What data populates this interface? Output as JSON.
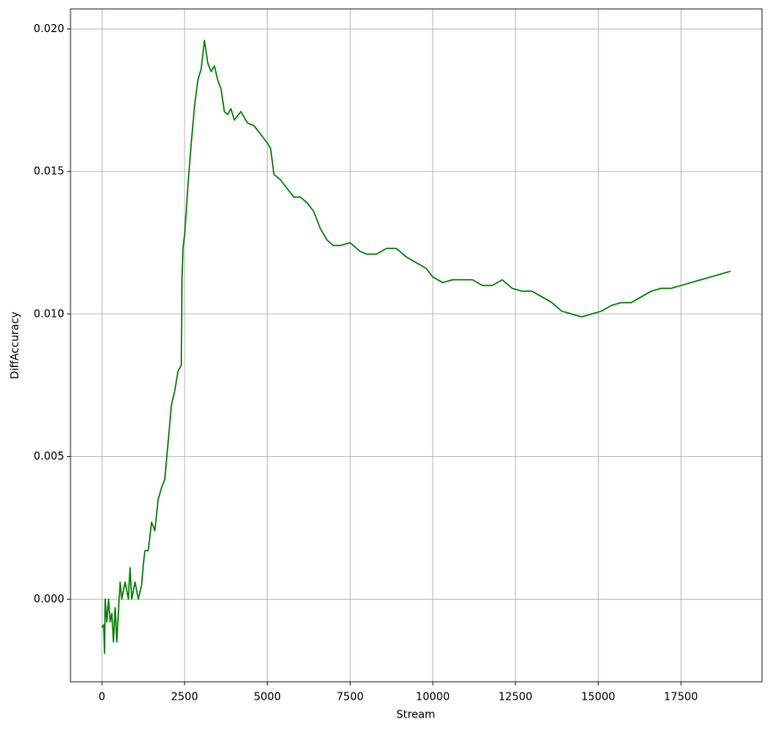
{
  "chart_data": {
    "type": "line",
    "xlabel": "Stream",
    "ylabel": "DiffAccuracy",
    "color": "#008000",
    "grid": true,
    "xlim": [
      -950,
      19950
    ],
    "ylim": [
      -0.0029,
      0.0207
    ],
    "xticks": [
      0,
      2500,
      5000,
      7500,
      10000,
      12500,
      15000,
      17500
    ],
    "yticks": [
      {
        "value": 0,
        "label": "0.000"
      },
      {
        "value": 0.005,
        "label": "0.005"
      },
      {
        "value": 0.01,
        "label": "0.010"
      },
      {
        "value": 0.015,
        "label": "0.015"
      },
      {
        "value": 0.02,
        "label": "0.020"
      }
    ],
    "x": [
      0,
      50,
      80,
      100,
      150,
      200,
      250,
      300,
      350,
      400,
      450,
      500,
      550,
      600,
      700,
      800,
      850,
      900,
      1000,
      1100,
      1200,
      1250,
      1300,
      1400,
      1500,
      1600,
      1700,
      1800,
      1900,
      2000,
      2100,
      2200,
      2300,
      2400,
      2420,
      2450,
      2500,
      2550,
      2600,
      2700,
      2800,
      2900,
      3000,
      3100,
      3200,
      3300,
      3400,
      3500,
      3600,
      3700,
      3800,
      3900,
      4000,
      4200,
      4400,
      4600,
      4800,
      5000,
      5100,
      5200,
      5400,
      5600,
      5800,
      6000,
      6200,
      6400,
      6600,
      6800,
      7000,
      7200,
      7500,
      7800,
      8000,
      8300,
      8600,
      8900,
      9200,
      9500,
      9800,
      10000,
      10300,
      10600,
      10900,
      11200,
      11500,
      11800,
      12100,
      12400,
      12700,
      13000,
      13300,
      13600,
      13900,
      14200,
      14500,
      14800,
      15100,
      15400,
      15700,
      16000,
      16300,
      16600,
      16900,
      17200,
      17500,
      17800,
      18100,
      18400,
      18700,
      19000
    ],
    "values": [
      -0.001,
      -0.0009,
      -0.0019,
      0,
      -0.0008,
      0,
      -0.0008,
      -0.0005,
      -0.0015,
      -0.0003,
      -0.0015,
      -0.0004,
      0.0006,
      0,
      0.0006,
      0,
      0.0011,
      0,
      0.0006,
      0,
      0.0005,
      0.0012,
      0.0017,
      0.0017,
      0.0027,
      0.0024,
      0.0035,
      0.0039,
      0.0042,
      0.0055,
      0.0068,
      0.0073,
      0.008,
      0.0082,
      0.0112,
      0.0123,
      0.0128,
      0.0136,
      0.0145,
      0.016,
      0.0173,
      0.0182,
      0.0186,
      0.0196,
      0.0188,
      0.0185,
      0.0187,
      0.0182,
      0.0179,
      0.0171,
      0.017,
      0.0172,
      0.0168,
      0.0171,
      0.0167,
      0.0166,
      0.0163,
      0.016,
      0.0158,
      0.0149,
      0.0147,
      0.0144,
      0.0141,
      0.0141,
      0.0139,
      0.0136,
      0.013,
      0.0126,
      0.0124,
      0.0124,
      0.0125,
      0.0122,
      0.0121,
      0.0121,
      0.0123,
      0.0123,
      0.012,
      0.0118,
      0.0116,
      0.0113,
      0.0111,
      0.0112,
      0.0112,
      0.0112,
      0.011,
      0.011,
      0.0112,
      0.0109,
      0.0108,
      0.0108,
      0.0106,
      0.0104,
      0.0101,
      0.01,
      0.0099,
      0.01,
      0.0101,
      0.0103,
      0.0104,
      0.0104,
      0.0106,
      0.0108,
      0.0109,
      0.0109,
      0.011,
      0.0111,
      0.0112,
      0.0113,
      0.0114,
      0.0115
    ]
  }
}
